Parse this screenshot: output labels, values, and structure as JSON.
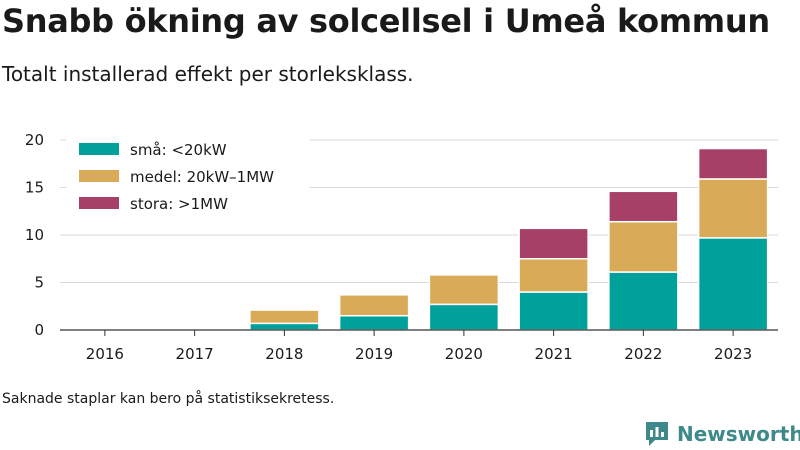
{
  "header": {
    "title": "Snabb ökning av solcellsel i Umeå kommun",
    "subtitle": "Totalt installerad effekt per storleksklass."
  },
  "footer": {
    "note": "Saknade staplar kan bero på statistiksekretess.",
    "brand": "Newsworthy"
  },
  "chart_data": {
    "type": "bar",
    "stacked": true,
    "categories": [
      "2016",
      "2017",
      "2018",
      "2019",
      "2020",
      "2021",
      "2022",
      "2023"
    ],
    "series": [
      {
        "name": "små: <20kW",
        "color": "#00a19a",
        "values": [
          0,
          0,
          0.7,
          1.5,
          2.7,
          4.0,
          6.1,
          9.7
        ]
      },
      {
        "name": "medel: 20kW–1MW",
        "color": "#d9ab58",
        "values": [
          0,
          0,
          1.4,
          2.2,
          3.1,
          3.5,
          5.3,
          6.2
        ]
      },
      {
        "name": "stora: >1MW",
        "color": "#a64067",
        "values": [
          0,
          0,
          0,
          0,
          0,
          3.2,
          3.2,
          3.2
        ]
      }
    ],
    "yticks": [
      0,
      5,
      10,
      15,
      20
    ],
    "ylim": [
      0,
      20
    ],
    "grid": true,
    "legend": "top-left"
  }
}
